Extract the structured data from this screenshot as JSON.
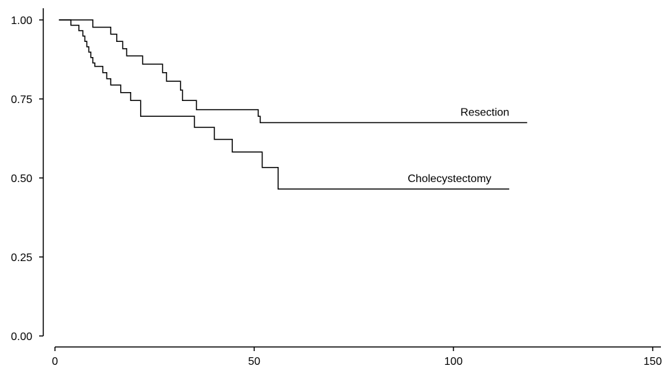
{
  "chart_data": {
    "type": "line",
    "step": true,
    "xlim": [
      0,
      150
    ],
    "ylim": [
      0,
      1
    ],
    "xticks": [
      0,
      50,
      100,
      150
    ],
    "xtick_labels": [
      "0",
      "50",
      "100",
      "150"
    ],
    "yticks": [
      0,
      0.25,
      0.5,
      0.75,
      1
    ],
    "ytick_labels": [
      "0.00",
      "0.25",
      "0.50",
      "0.75",
      "1.00"
    ],
    "grid": false,
    "series": [
      {
        "name": "Resection",
        "color": "#000000",
        "label_at": [
          118.5,
          0.675
        ],
        "points": [
          [
            1,
            1.0
          ],
          [
            9.5,
            1.0
          ],
          [
            9.5,
            0.977
          ],
          [
            14,
            0.977
          ],
          [
            14,
            0.955
          ],
          [
            15.5,
            0.955
          ],
          [
            15.5,
            0.932
          ],
          [
            17,
            0.932
          ],
          [
            17,
            0.909
          ],
          [
            18,
            0.909
          ],
          [
            18,
            0.886
          ],
          [
            22,
            0.886
          ],
          [
            22,
            0.86
          ],
          [
            27,
            0.86
          ],
          [
            27,
            0.833
          ],
          [
            28,
            0.833
          ],
          [
            28,
            0.806
          ],
          [
            31.5,
            0.806
          ],
          [
            31.5,
            0.778
          ],
          [
            32,
            0.778
          ],
          [
            32,
            0.745
          ],
          [
            35.5,
            0.745
          ],
          [
            35.5,
            0.716
          ],
          [
            51,
            0.716
          ],
          [
            51,
            0.695
          ],
          [
            51.5,
            0.695
          ],
          [
            51.5,
            0.675
          ],
          [
            118.5,
            0.675
          ]
        ]
      },
      {
        "name": "Cholecystectomy",
        "color": "#000000",
        "label_at": [
          114,
          0.465
        ],
        "points": [
          [
            1,
            1.0
          ],
          [
            4,
            1.0
          ],
          [
            4,
            0.983
          ],
          [
            6,
            0.983
          ],
          [
            6,
            0.966
          ],
          [
            7,
            0.966
          ],
          [
            7,
            0.949
          ],
          [
            7.5,
            0.949
          ],
          [
            7.5,
            0.932
          ],
          [
            8,
            0.932
          ],
          [
            8,
            0.915
          ],
          [
            8.5,
            0.915
          ],
          [
            8.5,
            0.898
          ],
          [
            9,
            0.898
          ],
          [
            9,
            0.881
          ],
          [
            9.5,
            0.881
          ],
          [
            9.5,
            0.864
          ],
          [
            10,
            0.864
          ],
          [
            10,
            0.853
          ],
          [
            12,
            0.853
          ],
          [
            12,
            0.833
          ],
          [
            13,
            0.833
          ],
          [
            13,
            0.814
          ],
          [
            14,
            0.814
          ],
          [
            14,
            0.794
          ],
          [
            16.5,
            0.794
          ],
          [
            16.5,
            0.77
          ],
          [
            19,
            0.77
          ],
          [
            19,
            0.745
          ],
          [
            21.5,
            0.745
          ],
          [
            21.5,
            0.695
          ],
          [
            35,
            0.695
          ],
          [
            35,
            0.66
          ],
          [
            40,
            0.66
          ],
          [
            40,
            0.622
          ],
          [
            44.5,
            0.622
          ],
          [
            44.5,
            0.582
          ],
          [
            52,
            0.582
          ],
          [
            52,
            0.533
          ],
          [
            56,
            0.533
          ],
          [
            56,
            0.465
          ],
          [
            114,
            0.465
          ]
        ]
      }
    ]
  }
}
